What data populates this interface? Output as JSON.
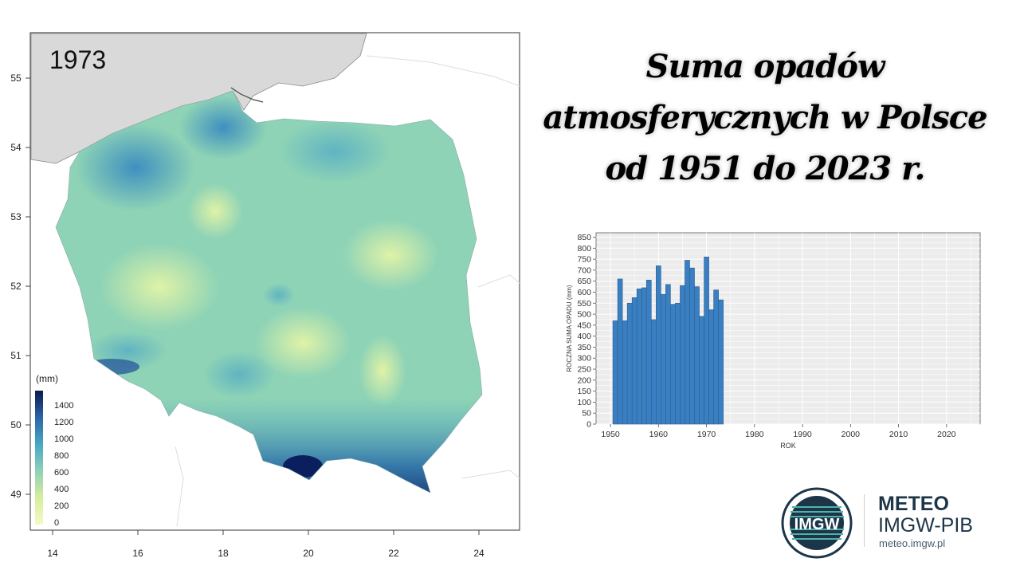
{
  "title_lines": [
    "Suma opadów",
    "atmosferycznych w Polsce",
    "od 1951 do 2023 r."
  ],
  "map": {
    "year_label": "1973",
    "legend_unit": "(mm)",
    "legend_ticks": [
      "1400",
      "1200",
      "1000",
      "800",
      "600",
      "400",
      "200",
      "0"
    ],
    "x_ticks": [
      "14",
      "16",
      "18",
      "20",
      "22",
      "24"
    ],
    "y_ticks": [
      "55",
      "54",
      "53",
      "52",
      "51",
      "50",
      "49"
    ],
    "colors": {
      "low": "#f4f8c0",
      "mid": "#8fd1b8",
      "high": "#2f7fb8",
      "max": "#0b2160",
      "sea": "#d9d9d9"
    }
  },
  "chart_data": {
    "type": "bar",
    "title": "",
    "xlabel": "ROK",
    "ylabel": "ROCZNA SUMA OPADU (mm)",
    "xlim": [
      1947,
      2027
    ],
    "ylim": [
      0,
      870
    ],
    "x_ticks": [
      "1950",
      "1960",
      "1970",
      "1980",
      "1990",
      "2000",
      "2010",
      "2020"
    ],
    "y_ticks": [
      "0",
      "50",
      "100",
      "150",
      "200",
      "250",
      "300",
      "350",
      "400",
      "450",
      "500",
      "550",
      "600",
      "650",
      "700",
      "750",
      "800",
      "850"
    ],
    "grid": true,
    "bar_color": "#3a7fc1",
    "x": [
      1951,
      1952,
      1953,
      1954,
      1955,
      1956,
      1957,
      1958,
      1959,
      1960,
      1961,
      1962,
      1963,
      1964,
      1965,
      1966,
      1967,
      1968,
      1969,
      1970,
      1971,
      1972,
      1973
    ],
    "values": [
      470,
      660,
      470,
      550,
      575,
      615,
      620,
      655,
      475,
      720,
      590,
      635,
      545,
      550,
      630,
      745,
      710,
      625,
      490,
      760,
      520,
      610,
      565
    ]
  },
  "logo": {
    "emblem_text": "IMGW",
    "brand_line1": "METEO",
    "brand_line2": "IMGW-PIB",
    "url": "meteo.imgw.pl",
    "color": "#1d3548"
  }
}
